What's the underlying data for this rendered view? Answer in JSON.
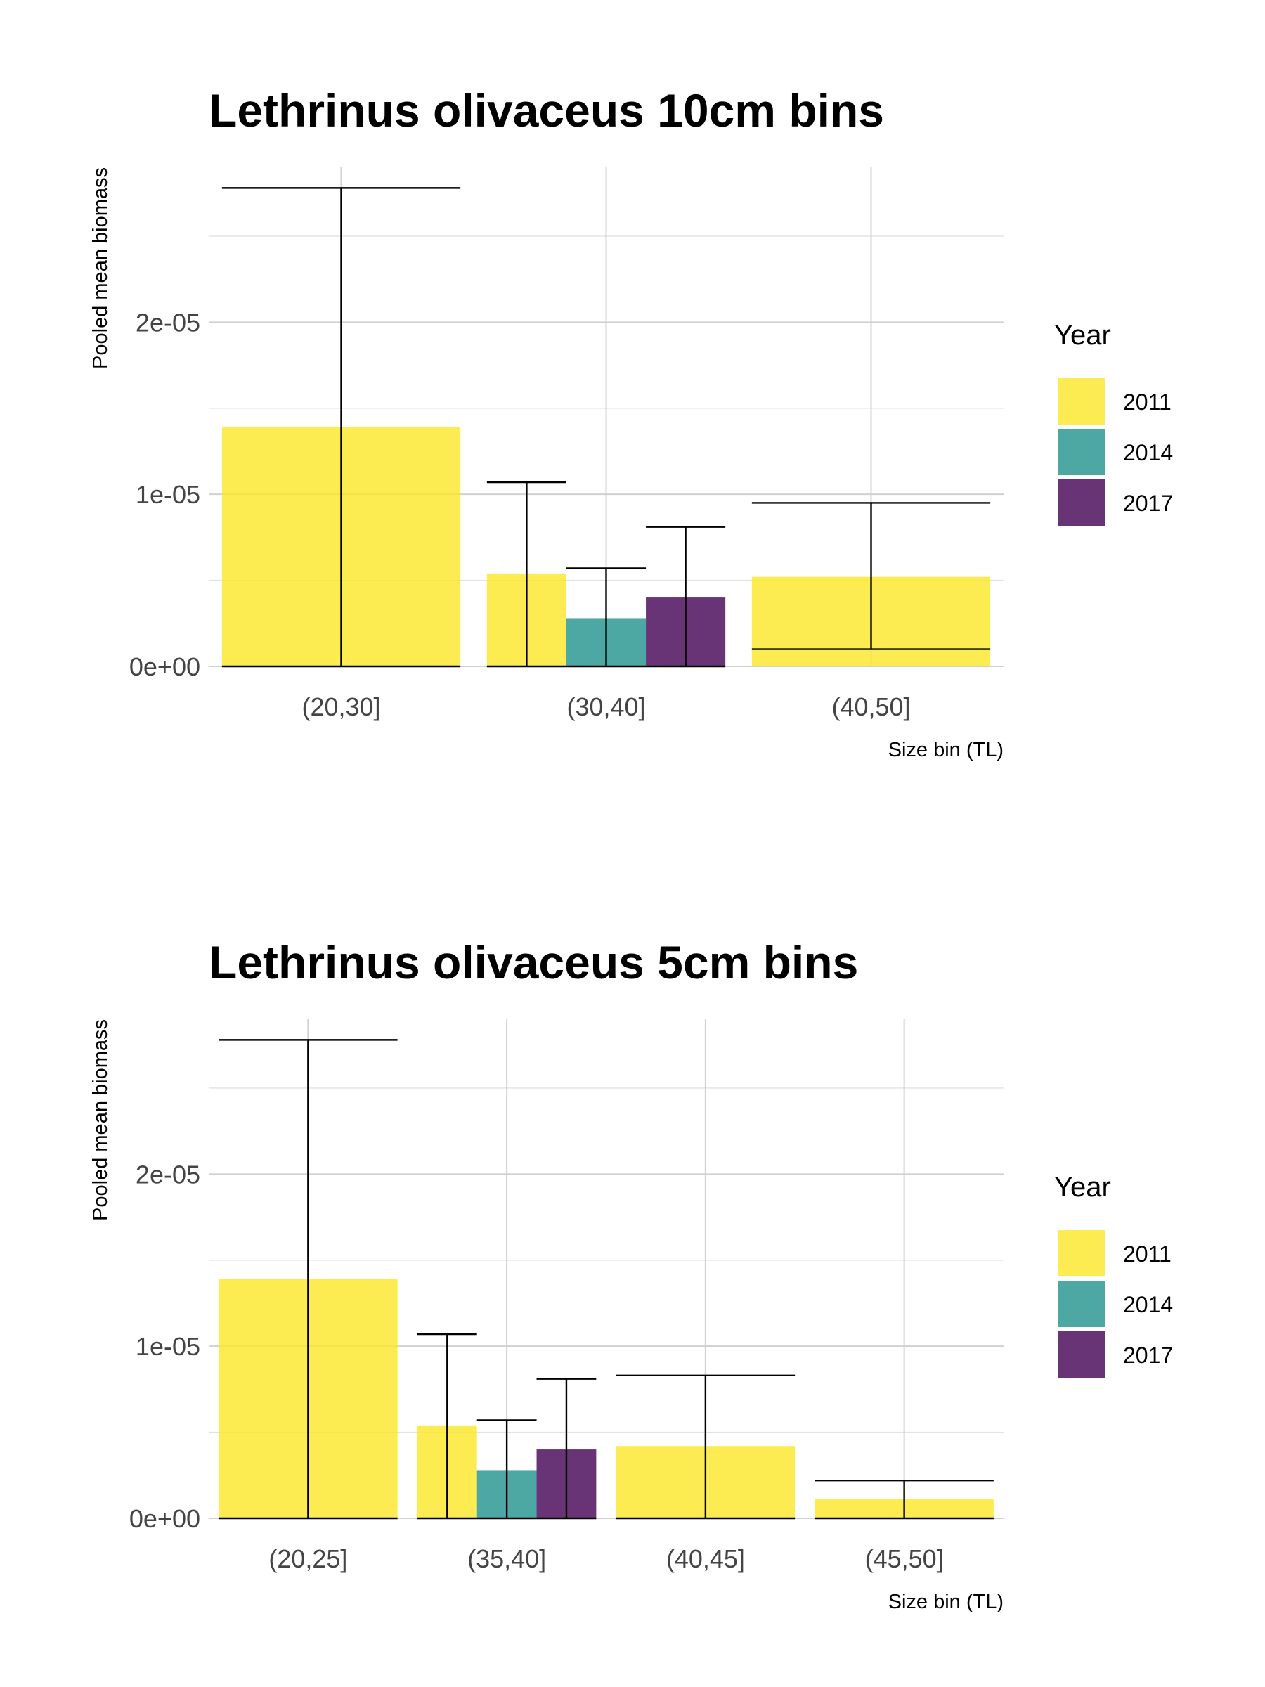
{
  "chart_data": [
    {
      "type": "bar",
      "title": "Lethrinus olivaceus 10cm bins",
      "xlabel": "Size bin (TL)",
      "ylabel": "Pooled mean biomass",
      "yticks": [
        "0e+00",
        "1e-05",
        "2e-05"
      ],
      "ytick_values": [
        0,
        1e-05,
        2e-05
      ],
      "ylim": [
        0,
        2.9e-05
      ],
      "grid": true,
      "legend": {
        "title": "Year",
        "placement": "right"
      },
      "categories": [
        "(20,30]",
        "(30,40]",
        "(40,50]"
      ],
      "series": [
        {
          "name": "2011",
          "color": "#fde725",
          "values": [
            1.39e-05,
            5.4e-06,
            5.2e-06
          ],
          "err_low": [
            0,
            0,
            1e-06
          ],
          "err_high": [
            2.78e-05,
            1.07e-05,
            9.5e-06
          ]
        },
        {
          "name": "2014",
          "color": "#21918c",
          "values": [
            null,
            2.8e-06,
            null
          ],
          "err_low": [
            null,
            0,
            null
          ],
          "err_high": [
            null,
            5.7e-06,
            null
          ]
        },
        {
          "name": "2017",
          "color": "#440154",
          "values": [
            null,
            4e-06,
            null
          ],
          "err_low": [
            null,
            0,
            null
          ],
          "err_high": [
            null,
            8.1e-06,
            null
          ]
        }
      ]
    },
    {
      "type": "bar",
      "title": "Lethrinus olivaceus 5cm bins",
      "xlabel": "Size bin (TL)",
      "ylabel": "Pooled mean biomass",
      "yticks": [
        "0e+00",
        "1e-05",
        "2e-05"
      ],
      "ytick_values": [
        0,
        1e-05,
        2e-05
      ],
      "ylim": [
        0,
        2.9e-05
      ],
      "grid": true,
      "legend": {
        "title": "Year",
        "placement": "right"
      },
      "categories": [
        "(20,25]",
        "(35,40]",
        "(40,45]",
        "(45,50]"
      ],
      "series": [
        {
          "name": "2011",
          "color": "#fde725",
          "values": [
            1.39e-05,
            5.4e-06,
            4.2e-06,
            1.1e-06
          ],
          "err_low": [
            0,
            0,
            0,
            0
          ],
          "err_high": [
            2.78e-05,
            1.07e-05,
            8.3e-06,
            2.2e-06
          ]
        },
        {
          "name": "2014",
          "color": "#21918c",
          "values": [
            null,
            2.8e-06,
            null,
            null
          ],
          "err_low": [
            null,
            0,
            null,
            null
          ],
          "err_high": [
            null,
            5.7e-06,
            null,
            null
          ]
        },
        {
          "name": "2017",
          "color": "#440154",
          "values": [
            null,
            4e-06,
            null,
            null
          ],
          "err_low": [
            null,
            0,
            null,
            null
          ],
          "err_high": [
            null,
            8.1e-06,
            null,
            null
          ]
        }
      ]
    }
  ]
}
